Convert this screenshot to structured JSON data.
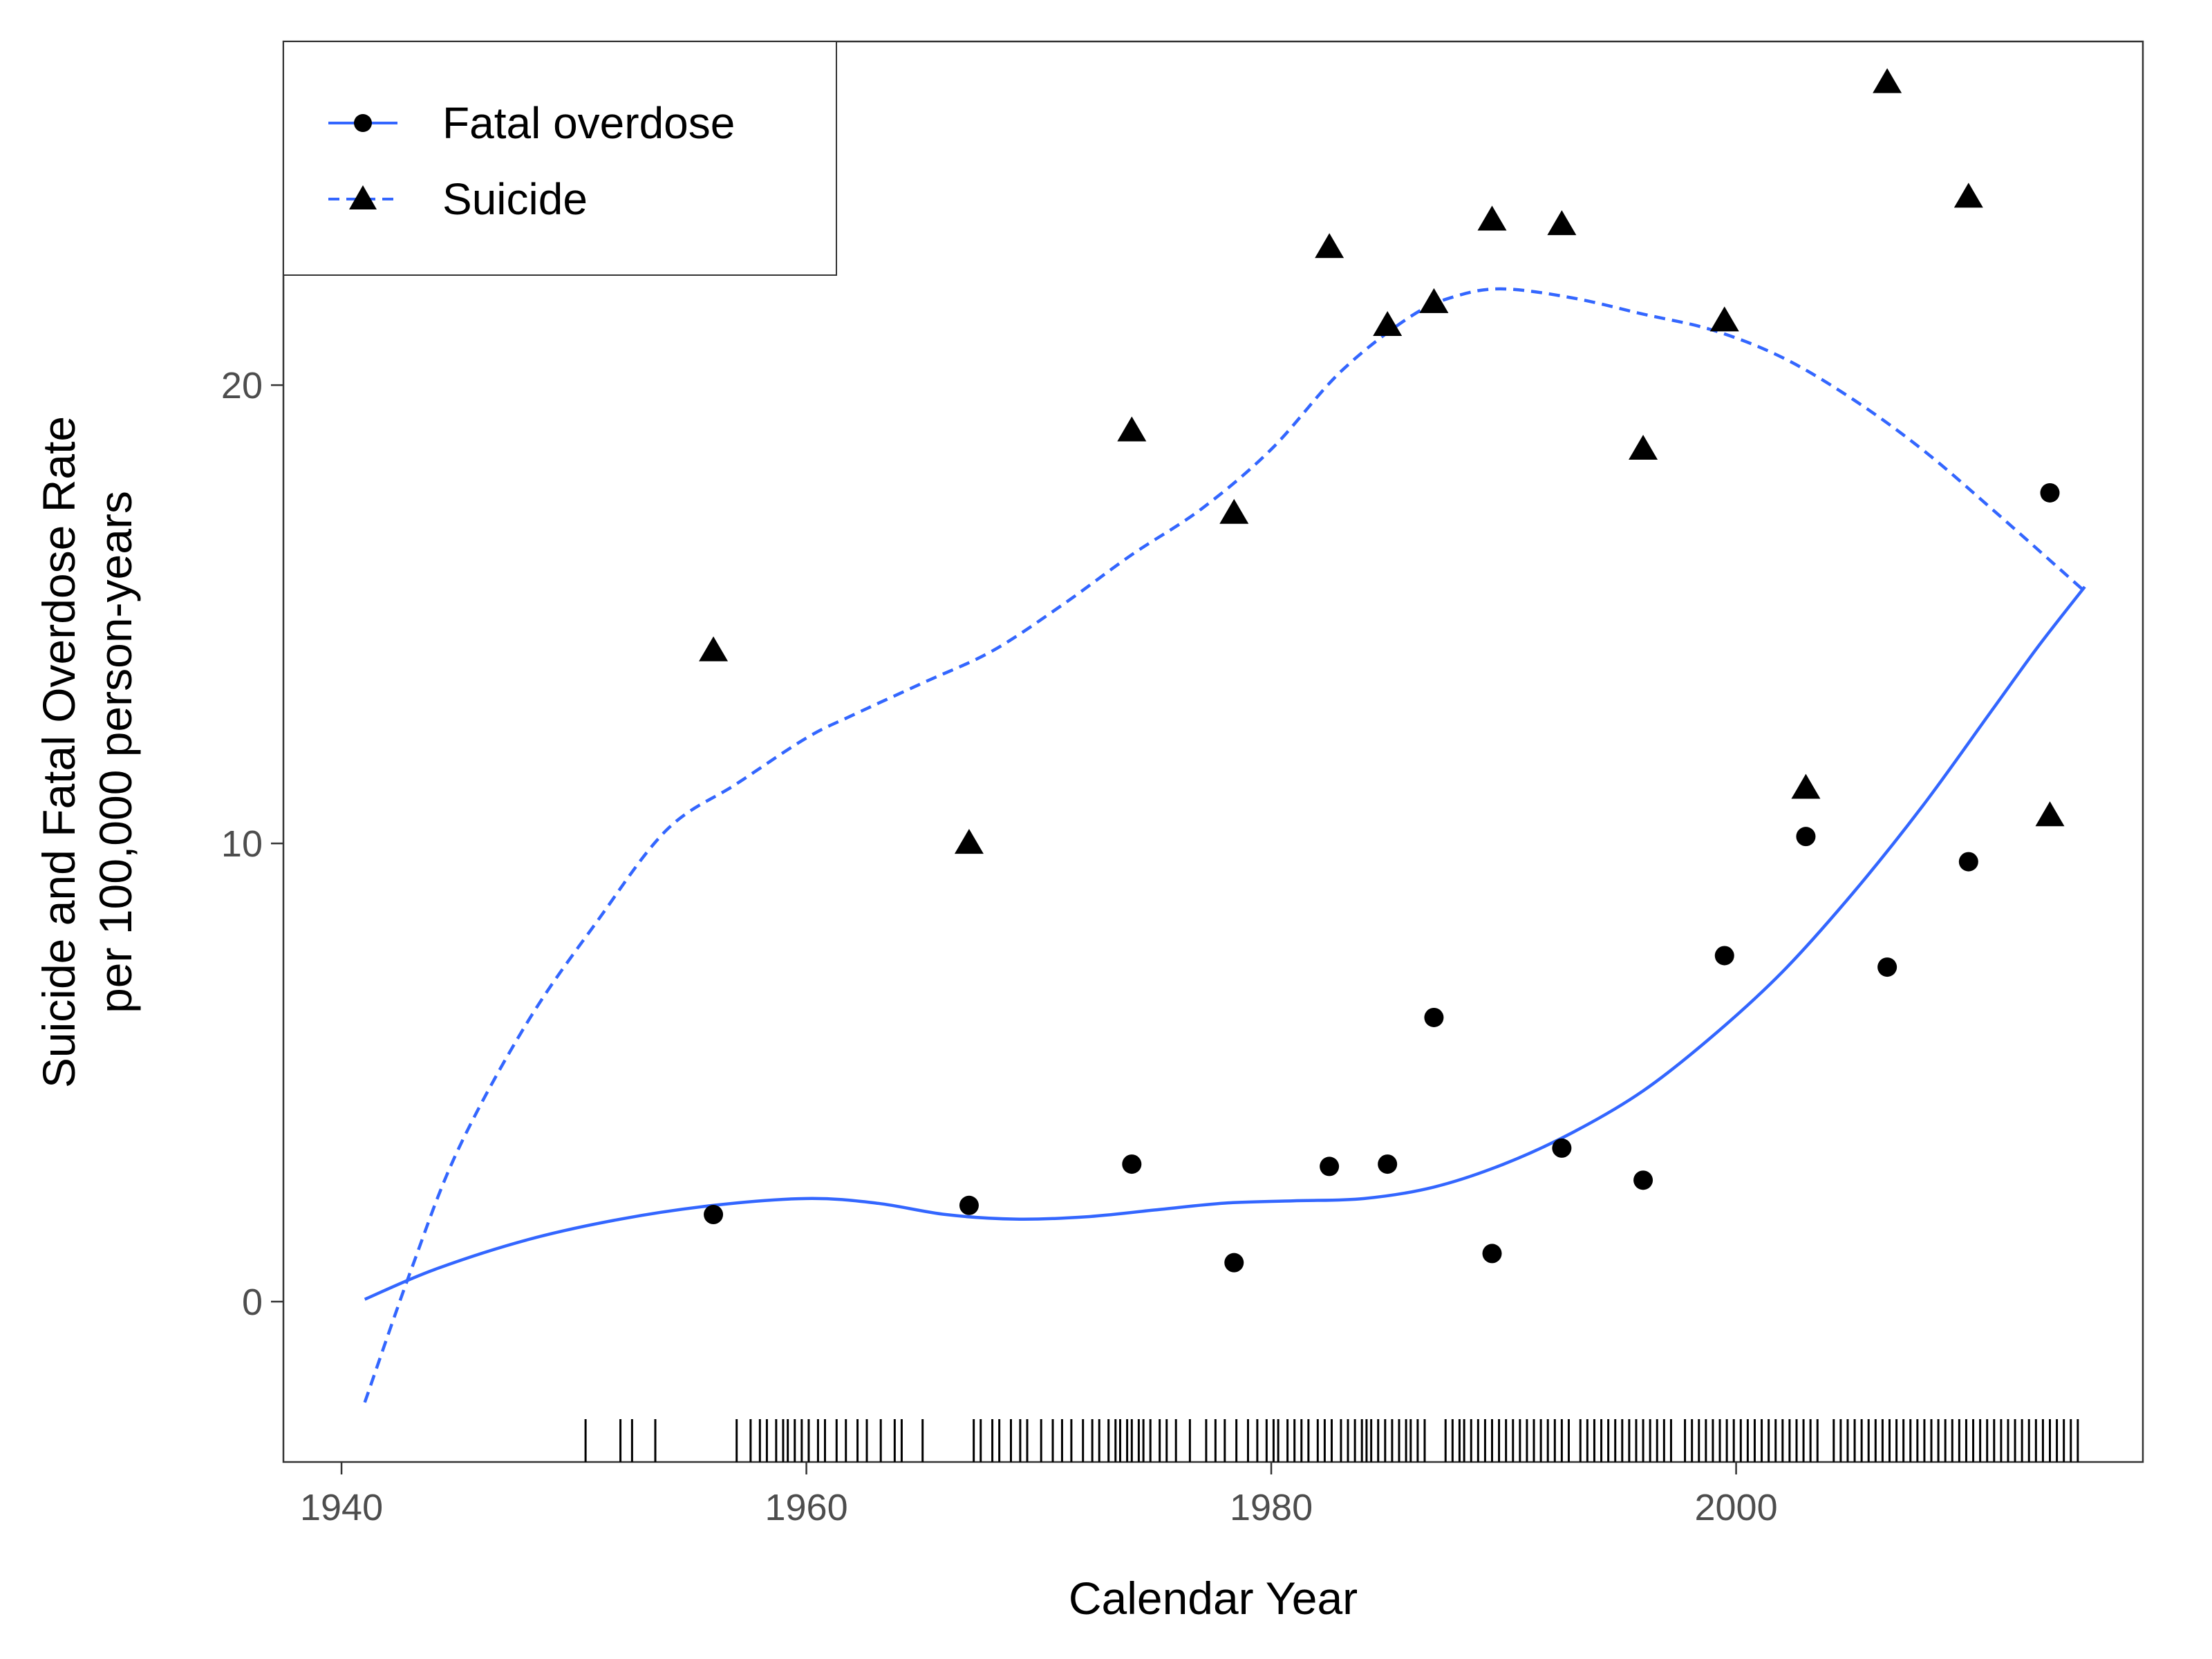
{
  "chart_data": {
    "type": "scatter",
    "title": "",
    "xlabel": "Calendar Year",
    "ylabel": "Suicide and Fatal Overdose Rate",
    "ylabel_line2": "per 100,000 person-years",
    "xlim": [
      1937.5,
      2017.5
    ],
    "ylim": [
      -3.5,
      27.5
    ],
    "x_ticks": [
      1940,
      1960,
      1980,
      2000
    ],
    "y_ticks": [
      0,
      10,
      20
    ],
    "grid": false,
    "legend_position": "top-left",
    "colors": {
      "line": "#3366FF",
      "points": "#000000",
      "axis": "#333333",
      "tick_text": "#4d4d4d"
    },
    "series": [
      {
        "name": "Fatal overdose",
        "marker": "circle",
        "line_style": "solid",
        "points": [
          {
            "x": 1956,
            "y": 1.9
          },
          {
            "x": 1967,
            "y": 2.1
          },
          {
            "x": 1974,
            "y": 3.0
          },
          {
            "x": 1978.4,
            "y": 0.85
          },
          {
            "x": 1982.5,
            "y": 2.95
          },
          {
            "x": 1985,
            "y": 3.0
          },
          {
            "x": 1987,
            "y": 6.2
          },
          {
            "x": 1989.5,
            "y": 1.05
          },
          {
            "x": 1992.5,
            "y": 3.35
          },
          {
            "x": 1996,
            "y": 2.65
          },
          {
            "x": 1999.5,
            "y": 7.55
          },
          {
            "x": 2003,
            "y": 10.15
          },
          {
            "x": 2006.5,
            "y": 7.3
          },
          {
            "x": 2010,
            "y": 9.6
          },
          {
            "x": 2013.5,
            "y": 17.65
          }
        ],
        "smooth": [
          {
            "x": 1941,
            "y": 0.05
          },
          {
            "x": 1944,
            "y": 0.7
          },
          {
            "x": 1948,
            "y": 1.35
          },
          {
            "x": 1952,
            "y": 1.8
          },
          {
            "x": 1956,
            "y": 2.1
          },
          {
            "x": 1960,
            "y": 2.25
          },
          {
            "x": 1963,
            "y": 2.15
          },
          {
            "x": 1966,
            "y": 1.9
          },
          {
            "x": 1969,
            "y": 1.8
          },
          {
            "x": 1972,
            "y": 1.85
          },
          {
            "x": 1975,
            "y": 2.0
          },
          {
            "x": 1978,
            "y": 2.15
          },
          {
            "x": 1981,
            "y": 2.2
          },
          {
            "x": 1984,
            "y": 2.25
          },
          {
            "x": 1987,
            "y": 2.5
          },
          {
            "x": 1990,
            "y": 3.0
          },
          {
            "x": 1993,
            "y": 3.7
          },
          {
            "x": 1996,
            "y": 4.6
          },
          {
            "x": 1999,
            "y": 5.8
          },
          {
            "x": 2002,
            "y": 7.2
          },
          {
            "x": 2005,
            "y": 8.9
          },
          {
            "x": 2008,
            "y": 10.8
          },
          {
            "x": 2011,
            "y": 12.9
          },
          {
            "x": 2013,
            "y": 14.3
          },
          {
            "x": 2015,
            "y": 15.6
          }
        ]
      },
      {
        "name": "Suicide",
        "marker": "triangle",
        "line_style": "dashed",
        "points": [
          {
            "x": 1956,
            "y": 14.2
          },
          {
            "x": 1967,
            "y": 10.0
          },
          {
            "x": 1974,
            "y": 19.0
          },
          {
            "x": 1978.4,
            "y": 17.2
          },
          {
            "x": 1982.5,
            "y": 23.0
          },
          {
            "x": 1985,
            "y": 21.3
          },
          {
            "x": 1987,
            "y": 21.8
          },
          {
            "x": 1989.5,
            "y": 23.6
          },
          {
            "x": 1992.5,
            "y": 23.5
          },
          {
            "x": 1996,
            "y": 18.6
          },
          {
            "x": 1999.5,
            "y": 21.4
          },
          {
            "x": 2003,
            "y": 11.2
          },
          {
            "x": 2006.5,
            "y": 26.6
          },
          {
            "x": 2010,
            "y": 24.1
          },
          {
            "x": 2013.5,
            "y": 10.6
          }
        ],
        "smooth": [
          {
            "x": 1941,
            "y": -2.2
          },
          {
            "x": 1943,
            "y": 0.7
          },
          {
            "x": 1945,
            "y": 3.3
          },
          {
            "x": 1948,
            "y": 6.1
          },
          {
            "x": 1951,
            "y": 8.3
          },
          {
            "x": 1954,
            "y": 10.3
          },
          {
            "x": 1957,
            "y": 11.3
          },
          {
            "x": 1960,
            "y": 12.3
          },
          {
            "x": 1962,
            "y": 12.8
          },
          {
            "x": 1965,
            "y": 13.5
          },
          {
            "x": 1968,
            "y": 14.2
          },
          {
            "x": 1971,
            "y": 15.2
          },
          {
            "x": 1974,
            "y": 16.3
          },
          {
            "x": 1977,
            "y": 17.3
          },
          {
            "x": 1980,
            "y": 18.6
          },
          {
            "x": 1983,
            "y": 20.3
          },
          {
            "x": 1986,
            "y": 21.5
          },
          {
            "x": 1988,
            "y": 21.95
          },
          {
            "x": 1990,
            "y": 22.1
          },
          {
            "x": 1993,
            "y": 21.9
          },
          {
            "x": 1996,
            "y": 21.55
          },
          {
            "x": 1999,
            "y": 21.2
          },
          {
            "x": 2002,
            "y": 20.6
          },
          {
            "x": 2005,
            "y": 19.7
          },
          {
            "x": 2008,
            "y": 18.6
          },
          {
            "x": 2011,
            "y": 17.3
          },
          {
            "x": 2015,
            "y": 15.5
          }
        ]
      }
    ],
    "rug_years": [
      1950.5,
      1952,
      1952.5,
      1953.5,
      1957,
      1957.6,
      1958,
      1958.3,
      1958.7,
      1959,
      1959.2,
      1959.5,
      1959.8,
      1960.1,
      1960.5,
      1960.8,
      1961.3,
      1961.7,
      1962.2,
      1962.6,
      1963.2,
      1963.8,
      1964.1,
      1965,
      1967.2,
      1967.5,
      1968,
      1968.3,
      1968.8,
      1969.2,
      1969.5,
      1970.1,
      1970.6,
      1971,
      1971.4,
      1971.9,
      1972.3,
      1972.6,
      1973,
      1973.3,
      1973.5,
      1973.8,
      1974,
      1974.3,
      1974.5,
      1974.8,
      1975.2,
      1975.5,
      1975.9,
      1976.5,
      1977.2,
      1977.6,
      1978,
      1978.5,
      1979,
      1979.4,
      1979.8,
      1980.1,
      1980.3,
      1980.7,
      1981,
      1981.3,
      1981.6,
      1982,
      1982.3,
      1982.6,
      1983,
      1983.3,
      1983.6,
      1983.9,
      1984.1,
      1984.3,
      1984.6,
      1984.9,
      1985.2,
      1985.5,
      1985.8,
      1986,
      1986.3,
      1986.6,
      1987.5,
      1987.8,
      1988.1,
      1988.3,
      1988.6,
      1988.9,
      1989.2,
      1989.5,
      1989.8,
      1990.1,
      1990.4,
      1990.7,
      1991,
      1991.3,
      1991.6,
      1991.9,
      1992.2,
      1992.5,
      1992.8,
      1993.3,
      1993.6,
      1993.9,
      1994.2,
      1994.5,
      1994.8,
      1995.1,
      1995.4,
      1995.7,
      1996,
      1996.3,
      1996.6,
      1996.9,
      1997.2,
      1997.8,
      1998.1,
      1998.4,
      1998.7,
      1999,
      1999.3,
      1999.6,
      1999.9,
      2000.2,
      2000.5,
      2000.8,
      2001.1,
      2001.4,
      2001.7,
      2002,
      2002.3,
      2002.6,
      2002.9,
      2003.2,
      2003.5,
      2004.2,
      2004.5,
      2004.8,
      2005.1,
      2005.4,
      2005.7,
      2006,
      2006.3,
      2006.6,
      2006.9,
      2007.2,
      2007.5,
      2007.8,
      2008.1,
      2008.4,
      2008.7,
      2009,
      2009.3,
      2009.6,
      2009.9,
      2010.2,
      2010.5,
      2010.8,
      2011.1,
      2011.4,
      2011.7,
      2012,
      2012.3,
      2012.6,
      2012.9,
      2013.2,
      2013.5,
      2013.8,
      2014.1,
      2014.4,
      2014.7
    ]
  }
}
